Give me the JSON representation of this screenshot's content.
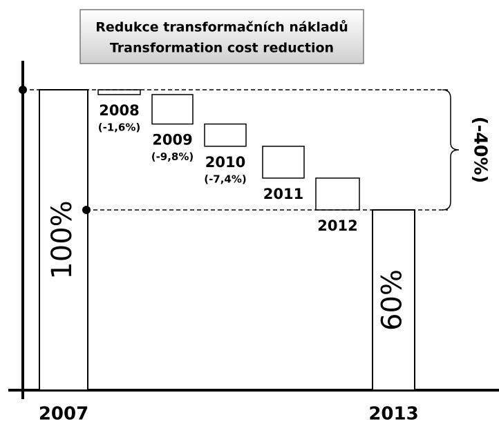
{
  "chart_data": {
    "type": "waterfall",
    "title": "Redukce transformačních nákladů",
    "subtitle": "Transformation cost reduction",
    "categories": [
      "2007",
      "2008",
      "2009",
      "2010",
      "2011",
      "2012",
      "2013"
    ],
    "values": [
      100,
      -1.6,
      -9.8,
      -7.4,
      -10.6,
      -10.6,
      60
    ],
    "value_labels": [
      "100%",
      "(-1,6%)",
      "(-9,8%)",
      "(-7,4%)",
      null,
      null,
      "60%"
    ],
    "annotation": "(-40%)",
    "ylim": [
      0,
      100
    ]
  }
}
